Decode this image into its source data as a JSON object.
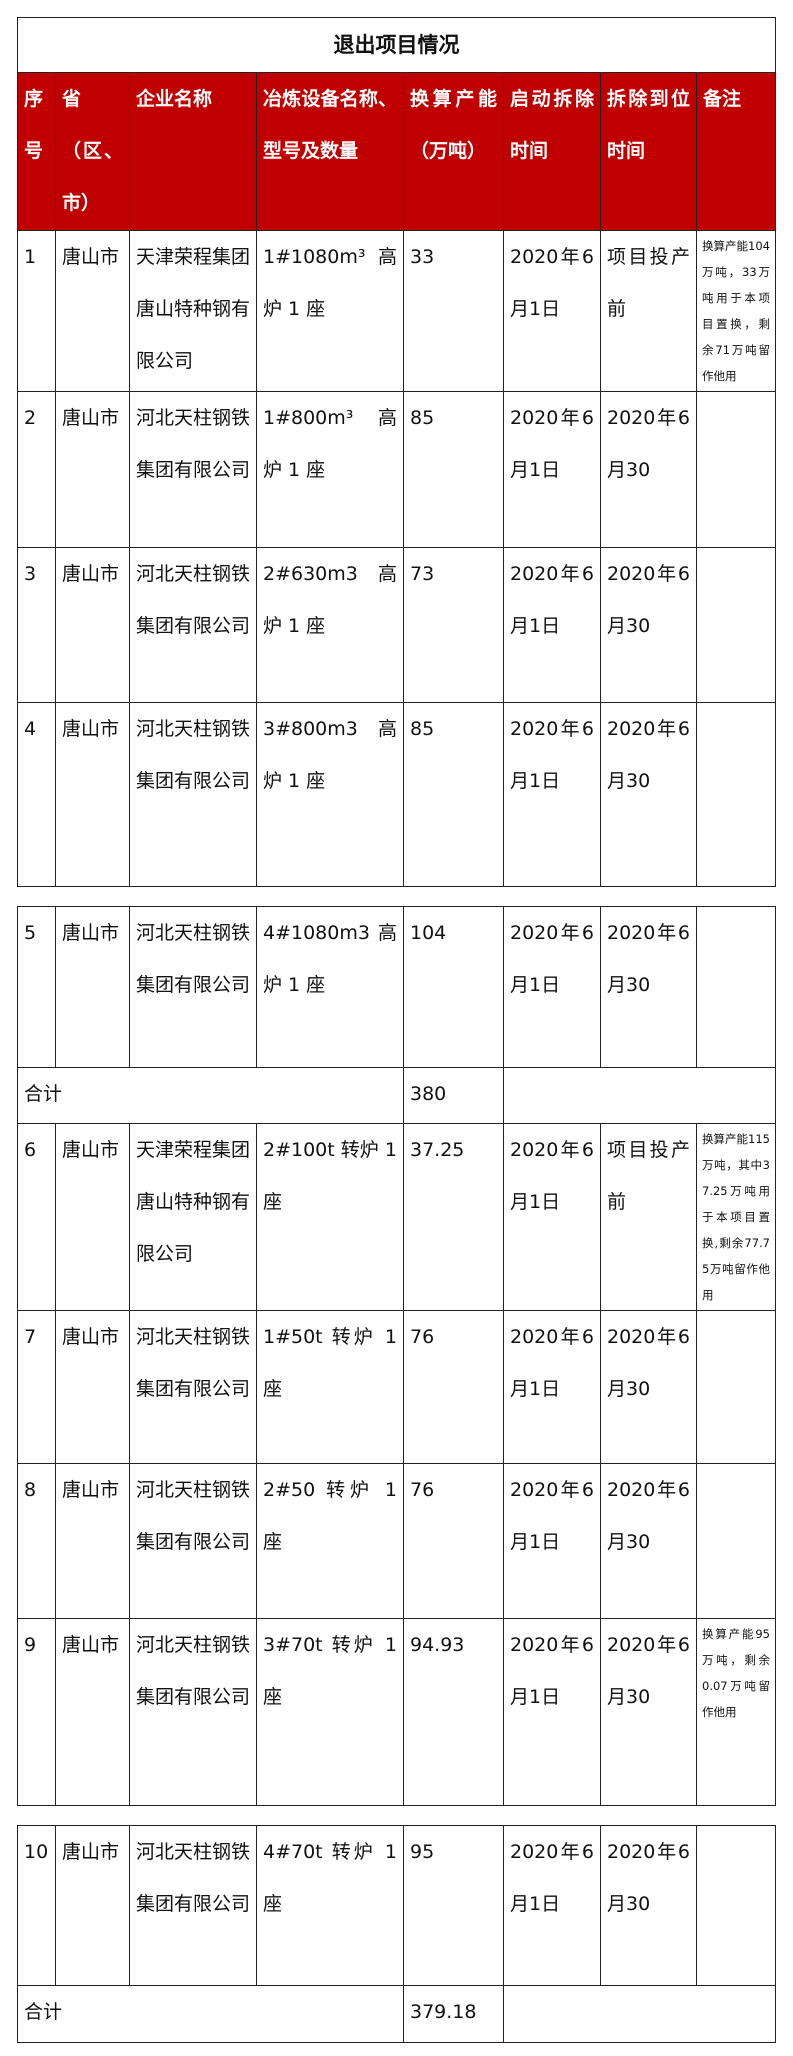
{
  "title": "退出项目情况",
  "colors": {
    "header_bg": "#c00000",
    "header_text": "#ffffff",
    "border": "#222222"
  },
  "headers": [
    "序号",
    "省（区、市）",
    "企业名称",
    "冶炼设备名称、型号及数量",
    "换算产能（万吨）",
    "启动拆除时间",
    "拆除到位时间",
    "备注"
  ],
  "rows": [
    {
      "no": "1",
      "city": "唐山市",
      "company": "天津荣程集团唐山特种钢有限公司",
      "equipment": "1#1080m³高炉 1 座",
      "capacity": "33",
      "start": "2020年6月1日",
      "end": "项目投产前",
      "note": "换算产能104万吨，33万吨用于本项目置换，剩余71万吨留作他用"
    },
    {
      "no": "2",
      "city": "唐山市",
      "company": "河北天柱钢铁集团有限公司",
      "equipment": "1#800m³ 高炉 1 座",
      "capacity": "85",
      "start": "2020年6月1日",
      "end": "2020年6月30",
      "note": ""
    },
    {
      "no": "3",
      "city": "唐山市",
      "company": "河北天柱钢铁集团有限公司",
      "equipment": "2#630m3 高炉 1 座",
      "capacity": "73",
      "start": "2020年6月1日",
      "end": "2020年6月30",
      "note": ""
    },
    {
      "no": "4",
      "city": "唐山市",
      "company": "河北天柱钢铁集团有限公司",
      "equipment": "3#800m3 高炉 1 座",
      "capacity": "85",
      "start": "2020年6月1日",
      "end": "2020年6月30",
      "note": ""
    },
    {
      "no": "5",
      "city": "唐山市",
      "company": "河北天柱钢铁集团有限公司",
      "equipment": "4#1080m3 高炉 1 座",
      "capacity": "104",
      "start": "2020年6月1日",
      "end": "2020年6月30",
      "note": ""
    },
    {
      "no": "6",
      "city": "唐山市",
      "company": "天津荣程集团唐山特种钢有限公司",
      "equipment": "2#100t 转炉 1 座",
      "capacity": "37.25",
      "start": "2020年6月1日",
      "end": "项目投产前",
      "note": "换算产能115万吨，其中37.25万吨用于本项目置换,剩余77.75万吨留作他用"
    },
    {
      "no": "7",
      "city": "唐山市",
      "company": "河北天柱钢铁集团有限公司",
      "equipment": "1#50t 转炉 1 座",
      "capacity": "76",
      "start": "2020年6月1日",
      "end": "2020年6月30",
      "note": ""
    },
    {
      "no": "8",
      "city": "唐山市",
      "company": "河北天柱钢铁集团有限公司",
      "equipment": "2#50 转炉 1 座",
      "capacity": "76",
      "start": "2020年6月1日",
      "end": "2020年6月30",
      "note": ""
    },
    {
      "no": "9",
      "city": "唐山市",
      "company": "河北天柱钢铁集团有限公司",
      "equipment": "3#70t 转炉 1 座",
      "capacity": "94.93",
      "start": "2020年6月1日",
      "end": "2020年6月30",
      "note": "换算产能95万吨，剩余0.07万吨留作他用"
    },
    {
      "no": "10",
      "city": "唐山市",
      "company": "河北天柱钢铁集团有限公司",
      "equipment": "4#70t 转炉 1 座",
      "capacity": "95",
      "start": "2020年6月1日",
      "end": "2020年6月30",
      "note": ""
    }
  ],
  "totals": [
    {
      "label": "合计",
      "value": "380"
    },
    {
      "label": "合计",
      "value": "379.18"
    }
  ]
}
